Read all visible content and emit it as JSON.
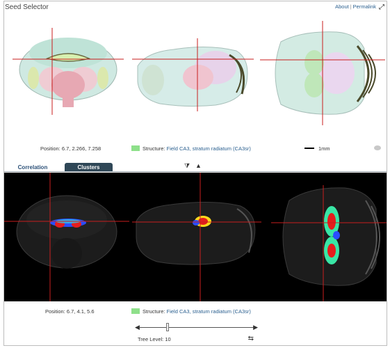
{
  "header": {
    "title": "Seed Selector",
    "about_label": "About",
    "separator": "|",
    "permalink_label": "Permalink",
    "expand_icon": "expand-icon"
  },
  "top_info": {
    "position_label": "Position:",
    "position_value": "6.7, 2.266, 7.258",
    "structure_label": "Structure:",
    "structure_value": "Field CA3, stratum radiatum (CA3sr)",
    "structure_color": "#8ee08a",
    "scale_label": "1mm",
    "eye_icon": "eye-icon"
  },
  "tabs": [
    {
      "label": "Correlation",
      "active": false
    },
    {
      "label": "Clusters",
      "active": true
    }
  ],
  "controls": {
    "collapse_down_icon": "filter-down-icon",
    "collapse_up_icon": "triangle-up-icon"
  },
  "bottom_info": {
    "position_label": "Position:",
    "position_value": "6.7, 4.1, 5.6",
    "structure_label": "Structure:",
    "structure_value": "Field CA3, stratum radiatum (CA3sr)",
    "structure_color": "#8ee08a"
  },
  "tree": {
    "label": "Tree Level: 10",
    "level": 10,
    "min": 0,
    "max": 40,
    "swap_icon": "swap-arrows-icon"
  }
}
